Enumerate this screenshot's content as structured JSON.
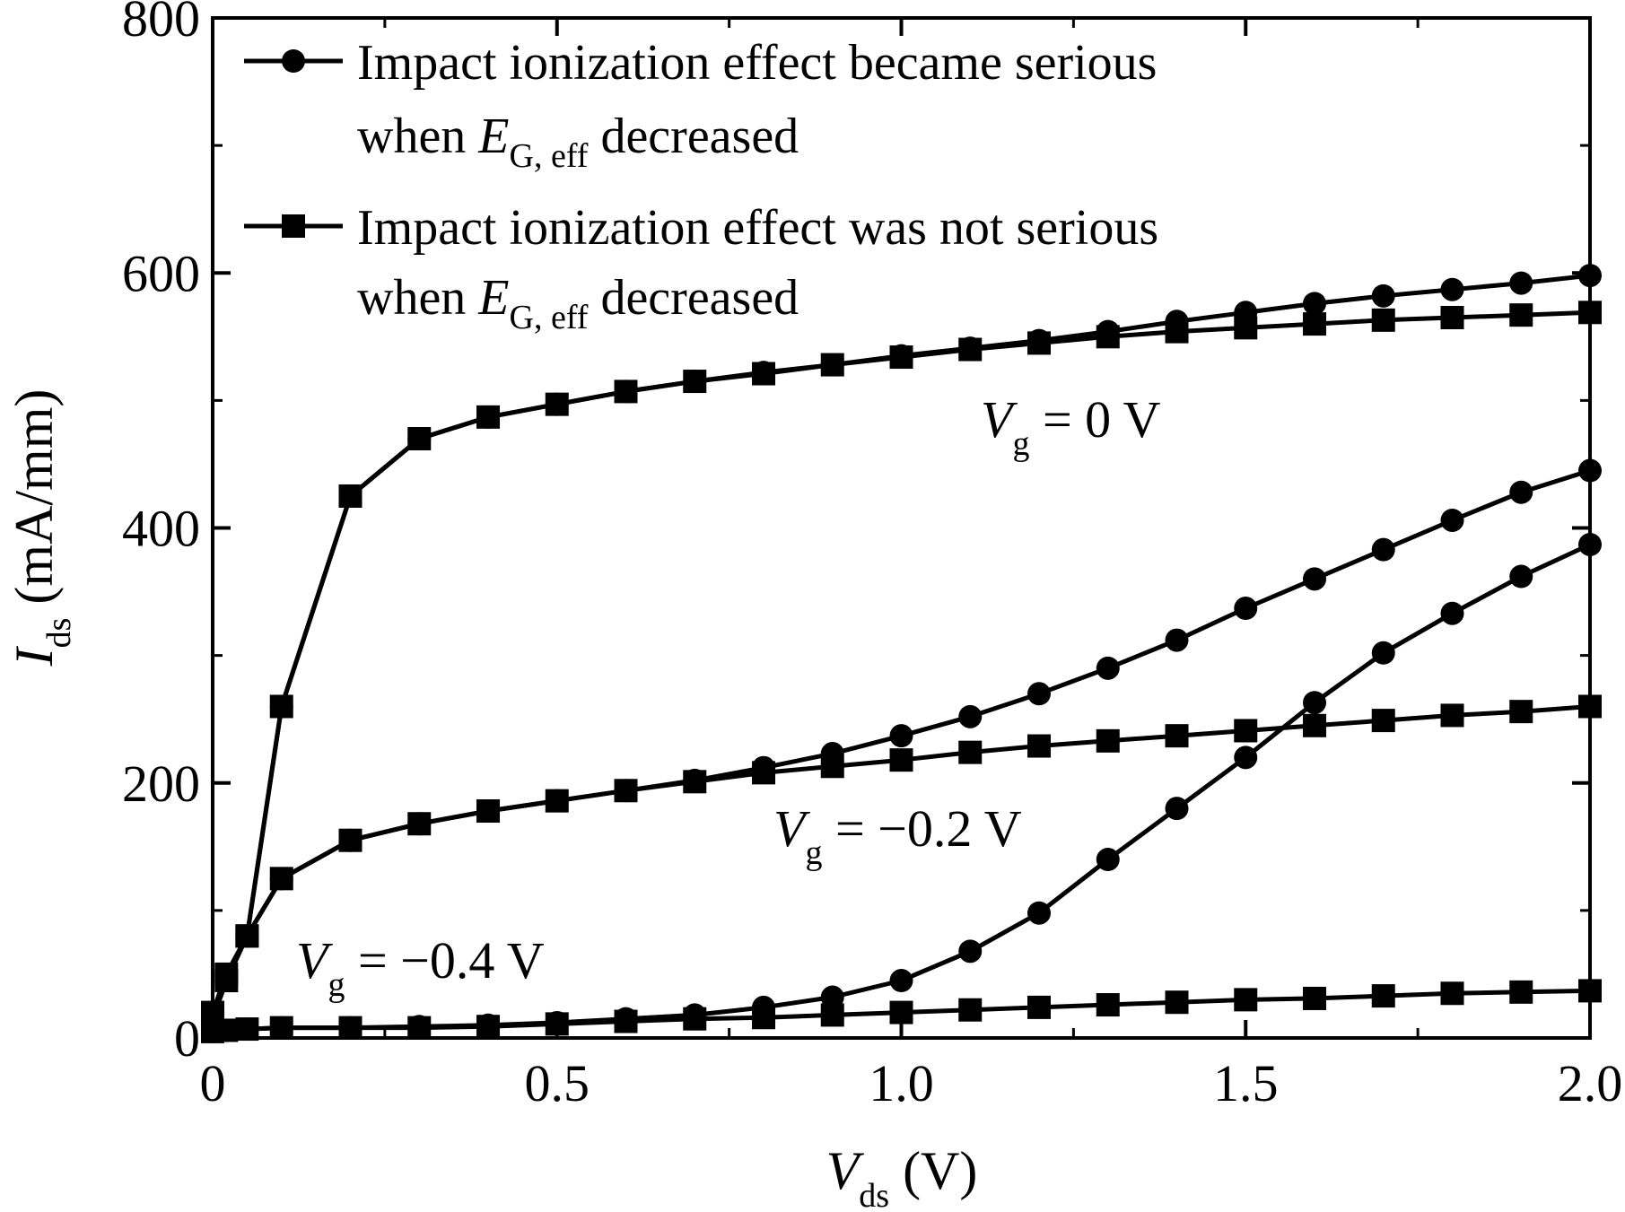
{
  "chart_data": {
    "type": "line",
    "xlabel": {
      "main": "V",
      "sub": "ds",
      "unit": " (V)"
    },
    "ylabel": {
      "main": "I",
      "sub": "ds",
      "unit": " (mA/mm)"
    },
    "xlim": [
      0,
      2.0
    ],
    "ylim": [
      0,
      800
    ],
    "xticks": [
      "0",
      "0.5",
      "1.0",
      "1.5",
      "2.0"
    ],
    "yticks": [
      "0",
      "200",
      "400",
      "600",
      "800"
    ],
    "grid": false,
    "legend_position": "top-left",
    "legend": [
      {
        "marker": "circle",
        "line1": "Impact ionization effect became serious",
        "line2_prefix": "when ",
        "line2_var": "E",
        "line2_sub": "G, eff",
        "line2_suffix": " decreased"
      },
      {
        "marker": "square",
        "line1": "Impact ionization effect was not serious",
        "line2_prefix": "when ",
        "line2_var": "E",
        "line2_sub": "G, eff",
        "line2_suffix": " decreased"
      }
    ],
    "annotations": [
      {
        "var": "V",
        "sub": "g",
        "text": " = 0 V"
      },
      {
        "var": "V",
        "sub": "g",
        "text": " = −0.2 V"
      },
      {
        "var": "V",
        "sub": "g",
        "text": " = −0.4 V"
      }
    ],
    "series": [
      {
        "marker": "circle",
        "group": "Vg=0",
        "x": [
          0,
          0.02,
          0.05,
          0.1,
          0.2,
          0.3,
          0.4,
          0.5,
          0.6,
          0.7,
          0.8,
          0.9,
          1.0,
          1.1,
          1.2,
          1.3,
          1.4,
          1.5,
          1.6,
          1.7,
          1.8,
          1.9,
          2.0
        ],
        "y": [
          20,
          50,
          80,
          260,
          425,
          470,
          487,
          497,
          507,
          515,
          522,
          528,
          535,
          541,
          547,
          554,
          562,
          569,
          576,
          582,
          587,
          592,
          598
        ]
      },
      {
        "marker": "square",
        "group": "Vg=0",
        "x": [
          0,
          0.02,
          0.05,
          0.1,
          0.2,
          0.3,
          0.4,
          0.5,
          0.6,
          0.7,
          0.8,
          0.9,
          1.0,
          1.1,
          1.2,
          1.3,
          1.4,
          1.5,
          1.6,
          1.7,
          1.8,
          1.9,
          2.0
        ],
        "y": [
          20,
          50,
          80,
          260,
          425,
          470,
          487,
          497,
          507,
          515,
          521,
          528,
          534,
          540,
          545,
          550,
          554,
          557,
          560,
          563,
          565,
          567,
          569
        ]
      },
      {
        "marker": "circle",
        "group": "Vg=-0.2",
        "x": [
          0,
          0.02,
          0.05,
          0.1,
          0.2,
          0.3,
          0.4,
          0.5,
          0.6,
          0.7,
          0.8,
          0.9,
          1.0,
          1.1,
          1.2,
          1.3,
          1.4,
          1.5,
          1.6,
          1.7,
          1.8,
          1.9,
          2.0
        ],
        "y": [
          15,
          45,
          80,
          125,
          155,
          168,
          178,
          186,
          194,
          202,
          212,
          223,
          237,
          252,
          270,
          290,
          312,
          337,
          360,
          383,
          406,
          428,
          445
        ]
      },
      {
        "marker": "square",
        "group": "Vg=-0.2",
        "x": [
          0,
          0.02,
          0.05,
          0.1,
          0.2,
          0.3,
          0.4,
          0.5,
          0.6,
          0.7,
          0.8,
          0.9,
          1.0,
          1.1,
          1.2,
          1.3,
          1.4,
          1.5,
          1.6,
          1.7,
          1.8,
          1.9,
          2.0
        ],
        "y": [
          15,
          45,
          80,
          125,
          155,
          168,
          178,
          186,
          194,
          201,
          208,
          213,
          218,
          224,
          229,
          233,
          237,
          241,
          245,
          249,
          253,
          256,
          260
        ]
      },
      {
        "marker": "circle",
        "group": "Vg=-0.4",
        "x": [
          0,
          0.02,
          0.05,
          0.1,
          0.2,
          0.3,
          0.4,
          0.5,
          0.6,
          0.7,
          0.8,
          0.9,
          1.0,
          1.1,
          1.2,
          1.3,
          1.4,
          1.5,
          1.6,
          1.7,
          1.8,
          1.9,
          2.0
        ],
        "y": [
          5,
          6,
          7,
          8,
          8,
          9,
          10,
          12,
          15,
          18,
          24,
          32,
          45,
          68,
          98,
          140,
          180,
          220,
          263,
          302,
          333,
          362,
          387
        ]
      },
      {
        "marker": "square",
        "group": "Vg=-0.4",
        "x": [
          0,
          0.02,
          0.05,
          0.1,
          0.2,
          0.3,
          0.4,
          0.5,
          0.6,
          0.7,
          0.8,
          0.9,
          1.0,
          1.1,
          1.2,
          1.3,
          1.4,
          1.5,
          1.6,
          1.7,
          1.8,
          1.9,
          2.0
        ],
        "y": [
          5,
          6,
          7,
          8,
          8,
          8,
          9,
          11,
          13,
          15,
          16,
          18,
          20,
          22,
          24,
          26,
          28,
          30,
          31,
          33,
          35,
          36,
          37
        ]
      }
    ]
  }
}
